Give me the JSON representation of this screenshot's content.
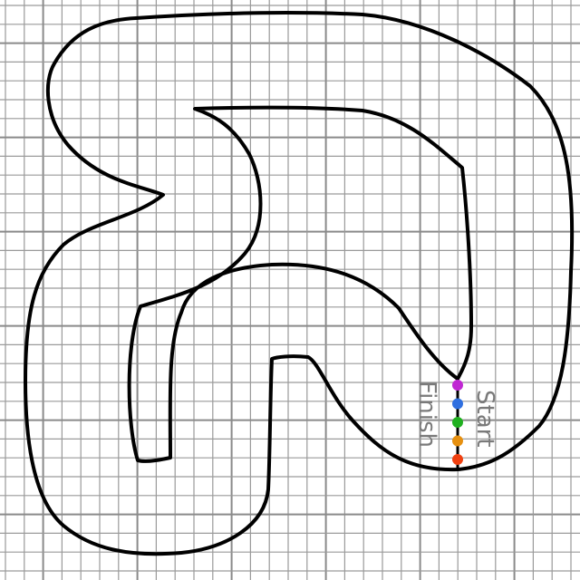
{
  "board": {
    "grid_color": "#9a9a9a",
    "track_color": "#000000"
  },
  "labels": {
    "start": "Start",
    "finish": "Finish"
  },
  "cars": [
    {
      "id": "car-1",
      "color": "#c026d3",
      "name": "magenta-car"
    },
    {
      "id": "car-2",
      "color": "#2f6fe0",
      "name": "blue-car"
    },
    {
      "id": "car-3",
      "color": "#20b020",
      "name": "green-car"
    },
    {
      "id": "car-4",
      "color": "#e69010",
      "name": "orange-car"
    },
    {
      "id": "car-5",
      "color": "#f04010",
      "name": "red-car"
    }
  ]
}
